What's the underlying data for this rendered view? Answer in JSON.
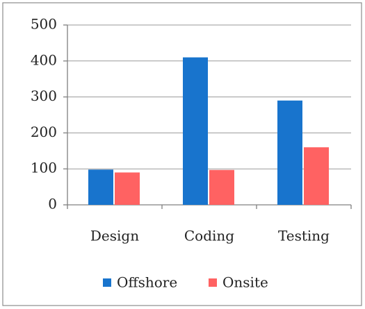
{
  "chart_data": {
    "type": "bar",
    "categories": [
      "Design",
      "Coding",
      "Testing"
    ],
    "series": [
      {
        "name": "Offshore",
        "color": "#1874cd",
        "values": [
          98,
          410,
          290
        ]
      },
      {
        "name": "Onsite",
        "color": "#ff6262",
        "values": [
          90,
          97,
          160
        ]
      }
    ],
    "ylim": [
      0,
      500
    ],
    "yticks": [
      0,
      100,
      200,
      300,
      400,
      500
    ],
    "grid": true,
    "legend": "bottom"
  }
}
